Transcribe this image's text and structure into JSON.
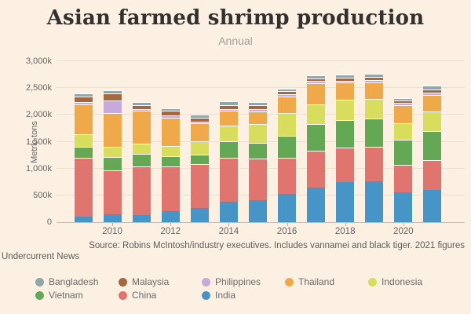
{
  "chart": {
    "title": "Asian farmed shrimp production",
    "subtitle": "Annual",
    "y_axis": {
      "label": "Metric tons",
      "ticks": [
        {
          "value": 0,
          "label": "0"
        },
        {
          "value": 500,
          "label": "500k"
        },
        {
          "value": 1000,
          "label": "1,000k"
        },
        {
          "value": 1500,
          "label": "1,500k"
        },
        {
          "value": 2000,
          "label": "2,000k"
        },
        {
          "value": 2500,
          "label": "2,500k"
        },
        {
          "value": 3000,
          "label": "3,000k"
        }
      ]
    },
    "x_axis": {
      "tick_years": [
        2010,
        2012,
        2014,
        2016,
        2018,
        2020
      ]
    },
    "source_line": "Source: Robins McIntosh/industry executives. Includes vannamei and black tiger. 2021 figures",
    "credit": "Undercurrent News",
    "legend_order": [
      "Bangladesh",
      "Malaysia",
      "Philippines",
      "Thailand",
      "Indonesia",
      "Vietnam",
      "China",
      "India"
    ],
    "colors": {
      "background": "#fcf0e2",
      "grid": "#ecdfcd",
      "axis": "#c6baa9",
      "text": "#666666",
      "title": "#333130"
    }
  },
  "chart_data": {
    "type": "bar",
    "stacked": true,
    "title": "Asian farmed shrimp production",
    "subtitle": "Annual",
    "xlabel": "",
    "ylabel": "Metric tons",
    "unit": "thousand metric tons",
    "ylim": [
      0,
      3000
    ],
    "grid": true,
    "legend_position": "bottom",
    "categories": [
      2009,
      2010,
      2011,
      2012,
      2013,
      2014,
      2015,
      2016,
      2017,
      2018,
      2019,
      2020,
      2021
    ],
    "series": [
      {
        "name": "India",
        "color": "#4695c6",
        "values": [
          100,
          150,
          130,
          210,
          270,
          380,
          410,
          530,
          645,
          740,
          765,
          555,
          600
        ]
      },
      {
        "name": "China",
        "color": "#e0756f",
        "values": [
          1080,
          800,
          890,
          820,
          795,
          810,
          755,
          660,
          670,
          635,
          630,
          500,
          540
        ]
      },
      {
        "name": "Vietnam",
        "color": "#64a855",
        "values": [
          190,
          230,
          220,
          165,
          170,
          285,
          290,
          390,
          485,
          495,
          515,
          450,
          525
        ]
      },
      {
        "name": "Indonesia",
        "color": "#d8dd5e",
        "values": [
          220,
          180,
          185,
          185,
          235,
          280,
          325,
          415,
          355,
          375,
          350,
          300,
          350
        ]
      },
      {
        "name": "Thailand",
        "color": "#f0a94a",
        "values": [
          550,
          620,
          590,
          510,
          310,
          260,
          230,
          290,
          375,
          295,
          290,
          320,
          305
        ]
      },
      {
        "name": "Philippines",
        "color": "#c9a8dc",
        "values": [
          10,
          220,
          15,
          25,
          25,
          25,
          25,
          25,
          25,
          25,
          25,
          15,
          20
        ]
      },
      {
        "name": "Malaysia",
        "color": "#a3683f",
        "values": [
          90,
          110,
          55,
          75,
          60,
          60,
          55,
          40,
          35,
          45,
          45,
          40,
          50
        ]
      },
      {
        "name": "Bangladesh",
        "color": "#8fa6ad",
        "values": [
          50,
          50,
          45,
          35,
          45,
          45,
          50,
          40,
          40,
          40,
          40,
          20,
          55
        ]
      }
    ]
  }
}
